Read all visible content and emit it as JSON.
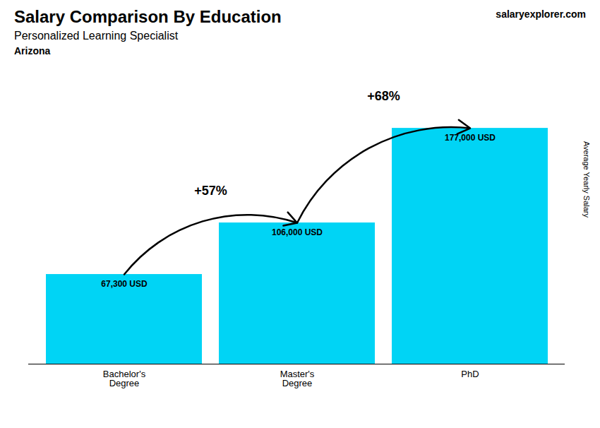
{
  "chart_data": {
    "type": "bar",
    "title": "Salary Comparison By Education",
    "subtitle": "Personalized Learning Specialist",
    "ylabel": "Average Yearly Salary",
    "categories": [
      "Bachelor's\nDegree",
      "Master's\nDegree",
      "PhD"
    ],
    "values": [
      67300,
      106000,
      177000
    ],
    "value_labels": [
      "67,300 USD",
      "106,000 USD",
      "177,000 USD"
    ],
    "data_labels": true,
    "color": "#00d4f5",
    "ylim": [
      0,
      220000
    ],
    "tick_labels": "x",
    "grid": false,
    "annotations": [
      {
        "text": "Arizona"
      },
      {
        "text": "salaryexplorer.com"
      },
      {
        "text": "+57%",
        "from": "Bachelor's\nDegree",
        "to": "Master's\nDegree"
      },
      {
        "text": "+68%",
        "from": "Master's\nDegree",
        "to": "PhD"
      }
    ]
  }
}
